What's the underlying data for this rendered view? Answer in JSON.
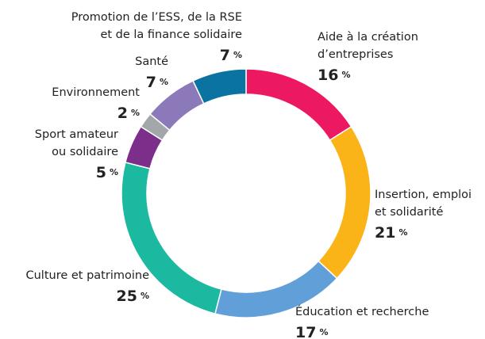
{
  "chart_data": {
    "type": "pie",
    "donut": true,
    "categories": [
      [
        "Aide à la création",
        "d’entreprises"
      ],
      [
        "Insertion, emploi",
        "et solidarité"
      ],
      [
        "Éducation et recherche"
      ],
      [
        "Culture et patrimoine"
      ],
      [
        "Sport amateur",
        "ou solidaire"
      ],
      [
        "Environnement"
      ],
      [
        "Santé"
      ],
      [
        "Promotion de l’ESS, de la RSE",
        "et de la finance solidaire"
      ]
    ],
    "values": [
      16,
      21,
      17,
      25,
      5,
      2,
      7,
      7
    ],
    "unit": "%",
    "colors": [
      "#ec1862",
      "#fbb418",
      "#619fd9",
      "#1cb9a1",
      "#7b2f8b",
      "#a2a7aa",
      "#8b79b9",
      "#0b73a1"
    ]
  }
}
